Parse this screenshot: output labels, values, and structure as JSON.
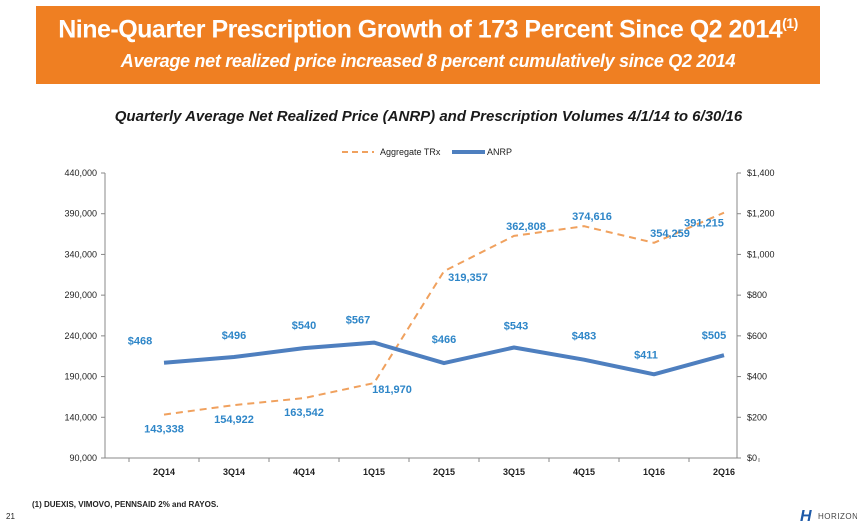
{
  "banner": {
    "title": "Nine-Quarter Prescription Growth of 173 Percent Since Q2 2014",
    "title_sup": "(1)",
    "subtitle": "Average net realized price increased 8 percent cumulatively since Q2 2014"
  },
  "chart_subtitle": "Quarterly Average Net Realized Price (ANRP) and Prescription Volumes 4/1/14 to 6/30/16",
  "footnote": "(1)   DUEXIS, VIMOVO, PENNSAID 2% and RAYOS.",
  "page_number": "21",
  "logo": {
    "mark": "H",
    "text": "HORIZON"
  },
  "chart_data": {
    "type": "line",
    "categories": [
      "2Q14",
      "3Q14",
      "4Q14",
      "1Q15",
      "2Q15",
      "3Q15",
      "4Q15",
      "1Q16",
      "2Q16"
    ],
    "series": [
      {
        "name": "Aggregate TRx",
        "axis": "left",
        "style": "dashed",
        "color": "#f0a15e",
        "values": [
          143338,
          154922,
          163542,
          181970,
          319357,
          362808,
          374616,
          354259,
          391215
        ],
        "labels": [
          "143,338",
          "154,922",
          "163,542",
          "181,970",
          "319,357",
          "362,808",
          "374,616",
          "354,259",
          "391,215"
        ]
      },
      {
        "name": "ANRP",
        "axis": "right",
        "style": "solid",
        "color": "#4e7fbf",
        "values": [
          468,
          496,
          540,
          567,
          466,
          543,
          483,
          411,
          505
        ],
        "labels": [
          "$468",
          "$496",
          "$540",
          "$567",
          "$466",
          "$543",
          "$483",
          "$411",
          "$505"
        ]
      }
    ],
    "left_axis": {
      "min": 90000,
      "max": 440000,
      "ticks": [
        90000,
        140000,
        190000,
        240000,
        290000,
        340000,
        390000,
        440000
      ],
      "tick_labels": [
        "90,000",
        "140,000",
        "190,000",
        "240,000",
        "290,000",
        "340,000",
        "390,000",
        "440,000"
      ]
    },
    "right_axis": {
      "min": 0,
      "max": 1400,
      "ticks": [
        0,
        200,
        400,
        600,
        800,
        1000,
        1200,
        1400
      ],
      "tick_labels": [
        "$0",
        "$200",
        "$400",
        "$600",
        "$800",
        "$1,000",
        "$1,200",
        "$1,400"
      ]
    },
    "legend": [
      "Aggregate TRx",
      "ANRP"
    ],
    "label_color": "#2e86c8"
  }
}
